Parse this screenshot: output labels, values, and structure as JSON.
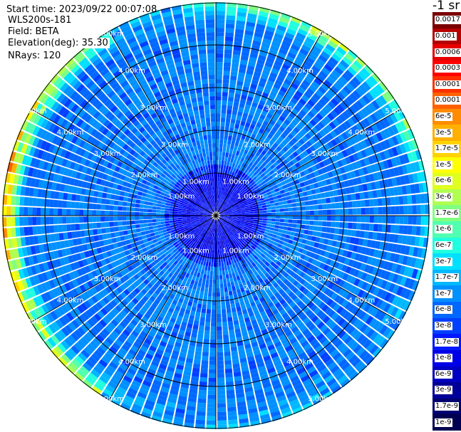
{
  "info": {
    "start_time": "Start time: 2023/09/22 00:07:08",
    "instrument": "WLS200s-181",
    "field": "Field: BETA",
    "elevation": "Elevation(deg): 35.30",
    "nrays": "NRays: 120"
  },
  "chart_data": {
    "type": "heatmap",
    "projection": "polar-ppi",
    "field": "BETA",
    "elevation_deg": 35.3,
    "n_rays": 120,
    "range_max_km": 5.0,
    "range_ring_labels_km": [
      1.0,
      2.0,
      3.0,
      4.0,
      5.0
    ],
    "range_ring_text": [
      "1.00km",
      "2.00km",
      "3.00km",
      "4.00km",
      "5.00km"
    ],
    "range_ring_text_bearings_deg": [
      30,
      60,
      120,
      150,
      210,
      240,
      300,
      330
    ],
    "radial_lines_deg": [
      0,
      30,
      60,
      90,
      120,
      150,
      180,
      210,
      240,
      300,
      330,
      270
    ],
    "colorbar": {
      "unit_label": "-1 sr",
      "ticks": [
        "0.0017",
        "0.001",
        "0.0006",
        "0.0003",
        "0.00017",
        "0.0001",
        "6e-5",
        "3e-5",
        "1.7e-5",
        "1e-5",
        "6e-6",
        "3e-6",
        "1.7e-6",
        "1e-6",
        "6e-7",
        "3e-7",
        "1.7e-7",
        "1e-7",
        "6e-8",
        "3e-8",
        "1.7e-8",
        "1e-8",
        "6e-9",
        "3e-9",
        "1.7e-9",
        "1e-9"
      ],
      "colors": [
        "#7a0000",
        "#b40000",
        "#e60000",
        "#ff0000",
        "#ff3000",
        "#ff6000",
        "#ff8c00",
        "#ffb000",
        "#ffd200",
        "#ffff00",
        "#e0ff20",
        "#b0ff50",
        "#80ff80",
        "#50ffb0",
        "#20ffe0",
        "#00e0ff",
        "#00b8ff",
        "#0090ff",
        "#0068ff",
        "#0040ff",
        "#0018ff",
        "#0000e8",
        "#0000c0",
        "#000098",
        "#000070",
        "#000050"
      ]
    },
    "typical_levels": {
      "inner_0_1km": "1e-8 to 3e-8",
      "middle_1_4km": "6e-8 to 3e-7",
      "outer_edge_west": "3e-5 to 1e-4",
      "outer_edge_north_east": "1.7e-6 to 1e-5"
    }
  }
}
